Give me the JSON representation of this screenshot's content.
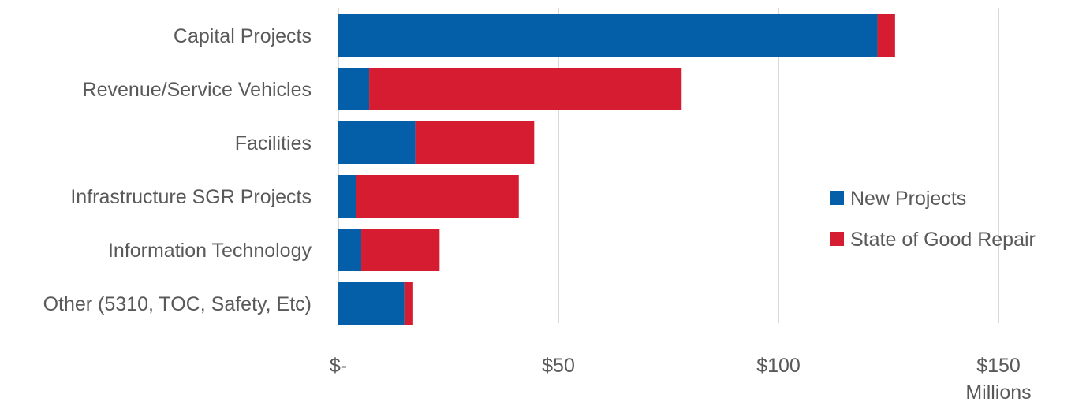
{
  "chart_data": {
    "type": "bar",
    "orientation": "horizontal",
    "stacked": true,
    "categories": [
      "Capital Projects",
      "Revenue/Service Vehicles",
      "Facilities",
      "Infrastructure SGR Projects",
      "Information Technology",
      "Other (5310, TOC, Safety, Etc)"
    ],
    "series": [
      {
        "name": "New Projects",
        "color": "#055ea8",
        "values": [
          122.5,
          7,
          17.5,
          4,
          5.2,
          15
        ]
      },
      {
        "name": "State of Good Repair",
        "color": "#d51c30",
        "values": [
          4,
          71,
          27,
          37,
          17.8,
          2
        ]
      }
    ],
    "xlim": [
      0,
      160
    ],
    "xticks": [
      0,
      50,
      100,
      150
    ],
    "xtick_labels": [
      "$-",
      "$50",
      "$100",
      "$150"
    ],
    "x_unit_label": "Millions",
    "title": "",
    "xlabel": "",
    "ylabel": "",
    "grid": "vertical",
    "legend_position": "right"
  }
}
